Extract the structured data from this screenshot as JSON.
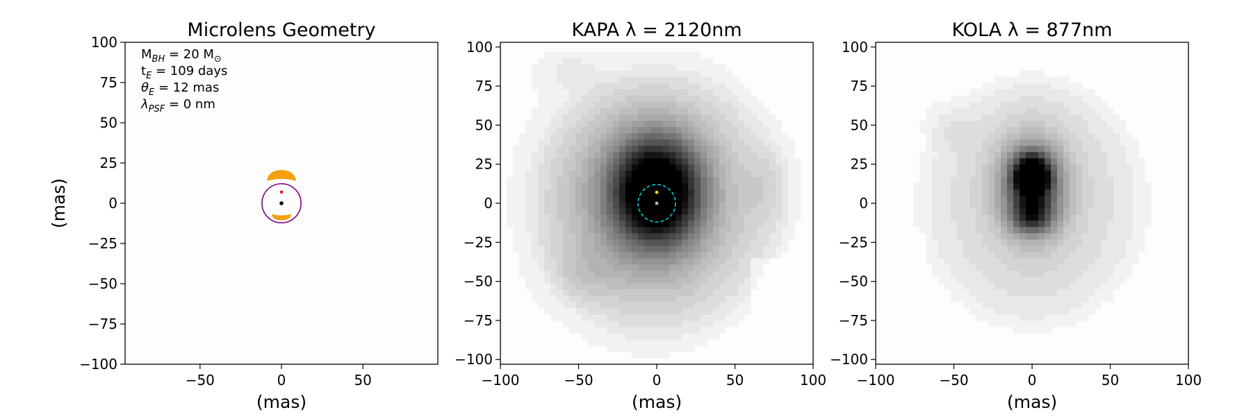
{
  "chart_data": [
    {
      "type": "scatter",
      "title": "Microlens Geometry",
      "xlabel": "(mas)",
      "ylabel": "(mas)",
      "xlim": [
        -96,
        96
      ],
      "ylim": [
        -100,
        100
      ],
      "xticks": [
        -50,
        0,
        50
      ],
      "yticks": [
        -100,
        -75,
        -50,
        -25,
        0,
        25,
        50,
        75,
        100
      ],
      "annotations": [
        {
          "text": "M_BH = 20 M_⊙",
          "base": "M",
          "sub": "BH",
          "rest": " = 20 M",
          "sub2": "⊙"
        },
        {
          "text": "t_E = 109 days",
          "base": "t",
          "sub": "E",
          "rest": " = 109 days"
        },
        {
          "text": "θ_E = 12 mas",
          "base": "θ",
          "sub": "E",
          "rest": " = 12 mas"
        },
        {
          "text": "λ_PSF = 0 nm",
          "base": "λ",
          "sub": "PSF",
          "rest": " = 0 nm"
        }
      ],
      "einstein_ring": {
        "center": [
          0,
          0
        ],
        "radius": 12,
        "color": "#800080"
      },
      "lens": {
        "x": 0,
        "y": 0,
        "color": "#000000"
      },
      "source": {
        "x": 0,
        "y": 7,
        "color": "#ff0000"
      },
      "images": {
        "color": "#f5a00f",
        "major": {
          "y": 16,
          "halfwidth": 9
        },
        "minor": {
          "y": -8,
          "halfwidth": 6
        }
      }
    },
    {
      "type": "heatmap",
      "title": "KAPA λ = 2120nm",
      "xlabel": "(mas)",
      "ylabel": "",
      "xlim": [
        -100,
        100
      ],
      "ylim": [
        -103,
        103
      ],
      "xticks": [
        -100,
        -50,
        0,
        50,
        100
      ],
      "yticks": [
        -100,
        -75,
        -50,
        -25,
        0,
        25,
        50,
        75,
        100
      ],
      "colormap": "gray_r",
      "peak": [
        0,
        8
      ],
      "einstein_ring": {
        "center": [
          0,
          0
        ],
        "radius": 12,
        "color": "#00ced1",
        "style": "dashed"
      },
      "markers": [
        {
          "x": 0,
          "y": 7,
          "color": "#ffd700"
        },
        {
          "x": 0,
          "y": 0,
          "color": "#bbbbbb"
        }
      ]
    },
    {
      "type": "heatmap",
      "title": "KOLA λ = 877nm",
      "xlabel": "(mas)",
      "ylabel": "",
      "xlim": [
        -100,
        100
      ],
      "ylim": [
        -103,
        103
      ],
      "xticks": [
        -100,
        -50,
        0,
        50,
        100
      ],
      "yticks": [
        -100,
        -75,
        -50,
        -25,
        0,
        25,
        50,
        75,
        100
      ],
      "colormap": "gray_r",
      "peak": [
        0,
        18
      ]
    }
  ]
}
